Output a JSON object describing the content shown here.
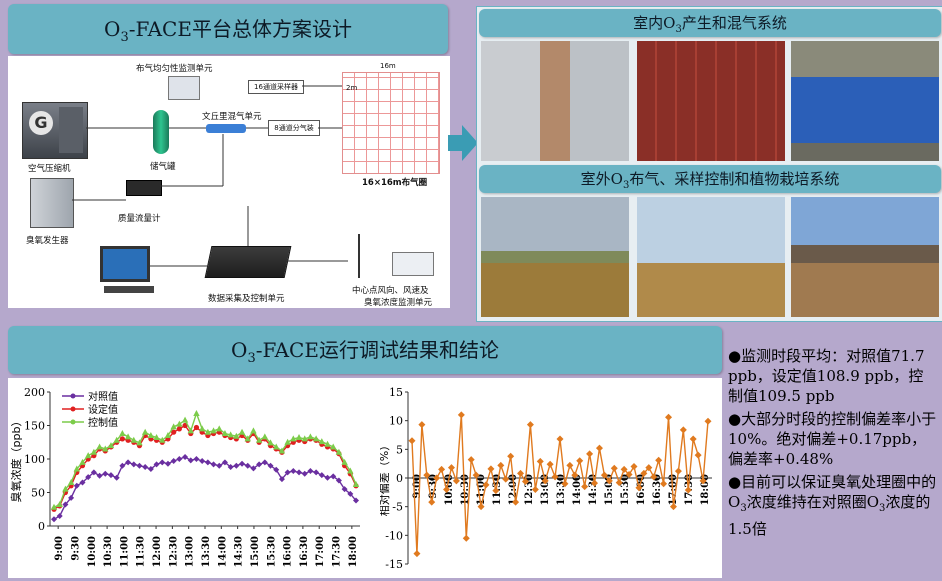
{
  "top_left": {
    "title_prefix": "O",
    "title_sub": "3",
    "title_rest": "-FACE平台总体方案设计",
    "labels": {
      "monitor": "布气均匀性监测单元",
      "sampler": "16通道采样器",
      "venturi": "文丘里混气单元",
      "compressor": "空气压缩机",
      "tank": "储气罐",
      "valve": "8通道分气装",
      "ozone": "臭氧发生器",
      "flow": "质量流量计",
      "ring": "16×16m布气圈",
      "dim1": "16m",
      "dim2": "2m",
      "daq": "数据采集及控制单元",
      "center": "中心点风向、风速及",
      "center2": "臭氧浓度监测单元"
    }
  },
  "right": {
    "title1_prefix": "室内O",
    "title1_sub": "3",
    "title1_rest": "产生和混气系统",
    "title2_prefix": "室外O",
    "title2_sub": "3",
    "title2_rest": "布气、采样控制和植物栽培系统"
  },
  "bottom": {
    "title_prefix": "O",
    "title_sub": "3",
    "title_rest": "-FACE运行调试结果和结论"
  },
  "bullets": {
    "b1": "●监测时段平均：对照值71.7 ppb，设定值108.9 ppb，控制值109.5 ppb",
    "b2": "●大部分时段的控制偏差率小于10%。绝对偏差+0.17ppb，偏差率+0.48%",
    "b3_a": "●目前可以保证臭氧处理圈中的O",
    "b3_sub": "3",
    "b3_b": "浓度维持在对照圈O",
    "b3_sub2": "3",
    "b3_c": "浓度的1.5倍"
  },
  "chart_data": [
    {
      "type": "line",
      "xlabel": "",
      "ylabel": "臭氧浓度（ppb）",
      "ylim": [
        0,
        200
      ],
      "yticks": [
        "0",
        "50",
        "100",
        "150",
        "200"
      ],
      "xticks": [
        "9:00",
        "9:30",
        "10:00",
        "10:30",
        "11:00",
        "11:30",
        "12:00",
        "12:30",
        "13:00",
        "13:30",
        "14:00",
        "14:30",
        "15:00",
        "15:30",
        "16:00",
        "16:30",
        "17:00",
        "17:30",
        "18:00"
      ],
      "legend_position": "top-left",
      "series": [
        {
          "name": "对照值",
          "color": "#6a2fa0",
          "values": [
            10,
            15,
            32,
            42,
            60,
            65,
            73,
            80,
            75,
            78,
            76,
            72,
            90,
            95,
            92,
            90,
            88,
            85,
            92,
            95,
            93,
            97,
            100,
            103,
            98,
            100,
            97,
            95,
            92,
            90,
            95,
            88,
            90,
            93,
            90,
            86,
            92,
            95,
            90,
            84,
            70,
            80,
            82,
            80,
            78,
            82,
            80,
            76,
            72,
            74,
            68,
            55,
            48,
            38
          ]
        },
        {
          "name": "设定值",
          "color": "#e02020",
          "values": [
            25,
            30,
            50,
            60,
            80,
            90,
            100,
            105,
            115,
            112,
            118,
            125,
            130,
            128,
            125,
            120,
            135,
            130,
            128,
            125,
            130,
            140,
            145,
            150,
            138,
            147,
            140,
            135,
            138,
            140,
            135,
            132,
            130,
            135,
            128,
            138,
            125,
            130,
            120,
            115,
            110,
            120,
            125,
            128,
            126,
            130,
            128,
            122,
            118,
            115,
            108,
            90,
            78,
            60
          ]
        },
        {
          "name": "控制值",
          "color": "#7ccc4a",
          "values": [
            28,
            32,
            55,
            65,
            85,
            95,
            105,
            110,
            118,
            115,
            120,
            128,
            138,
            133,
            128,
            124,
            140,
            135,
            132,
            128,
            135,
            148,
            152,
            158,
            142,
            168,
            145,
            140,
            142,
            145,
            138,
            136,
            134,
            140,
            130,
            142,
            128,
            133,
            124,
            118,
            112,
            125,
            130,
            132,
            130,
            133,
            130,
            126,
            122,
            118,
            110,
            95,
            82,
            62
          ]
        }
      ]
    },
    {
      "type": "line",
      "xlabel": "",
      "ylabel": "相对偏差（%）",
      "ylim": [
        -15,
        15
      ],
      "yticks": [
        "-15",
        "-10",
        "-5",
        "0",
        "5",
        "10",
        "15"
      ],
      "xticks": [
        "9:00",
        "9:30",
        "10:00",
        "10:30",
        "11:00",
        "11:30",
        "12:00",
        "12:30",
        "13:00",
        "13:30",
        "14:00",
        "14:30",
        "15:00",
        "15:30",
        "16:00",
        "16:30",
        "17:00",
        "17:30",
        "18:00"
      ],
      "series": [
        {
          "name": "",
          "color": "#e07a1f",
          "values": [
            6.5,
            -13.2,
            9.3,
            0.5,
            -4.2,
            0,
            1.5,
            -2.0,
            1.8,
            -0.5,
            11.0,
            -10.5,
            3.2,
            0.5,
            -5.0,
            -1.2,
            1.6,
            -2.2,
            2.2,
            -0.2,
            3.8,
            -4.2,
            0.8,
            -0.6,
            9.3,
            -2.0,
            2.9,
            -0.5,
            2.4,
            0.2,
            6.8,
            -1.0,
            2.2,
            0.5,
            3.0,
            -1.5,
            4.2,
            -0.9,
            5.2,
            0.5,
            -0.5,
            1.7,
            -0.8,
            1.5,
            0.6,
            2.0,
            -1.7,
            0.8,
            1.8,
            0.2,
            3.1,
            -1.0,
            10.6,
            -5.0,
            1.2,
            8.4,
            -2.1,
            6.8,
            4.0,
            -0.5,
            9.9
          ]
        }
      ]
    }
  ]
}
